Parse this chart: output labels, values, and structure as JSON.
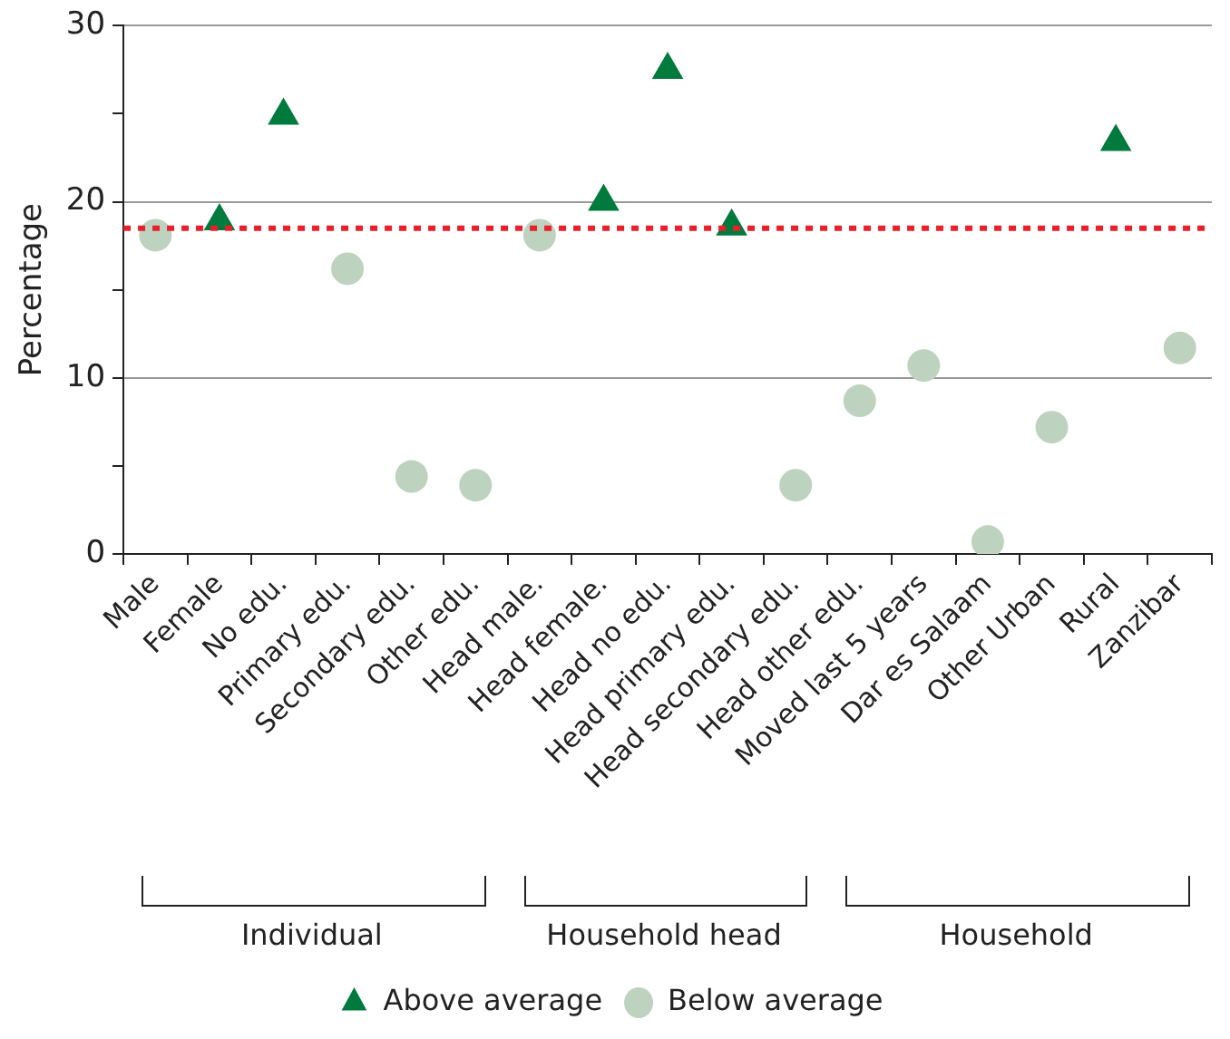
{
  "chart_data": {
    "type": "scatter",
    "ylabel": "Percentage",
    "categories": [
      "Male",
      "Female",
      "No edu.",
      "Primary edu.",
      "Secondary edu.",
      "Other edu.",
      "Head male.",
      "Head female.",
      "Head no edu.",
      "Head primary edu.",
      "Head secondary edu.",
      "Head other edu.",
      "Moved last 5 years",
      "Dar es Salaam",
      "Other Urban",
      "Rural",
      "Zanzibar"
    ],
    "series": [
      {
        "name": "Above average",
        "color": "#007a3d",
        "marker": "triangle",
        "values": [
          null,
          18.9,
          24.9,
          null,
          null,
          null,
          null,
          20.0,
          27.5,
          18.6,
          null,
          null,
          null,
          null,
          null,
          23.4,
          null
        ]
      },
      {
        "name": "Below average",
        "color": "#bdd3c0",
        "marker": "circle",
        "values": [
          18.1,
          null,
          null,
          16.2,
          4.4,
          3.9,
          18.1,
          null,
          null,
          null,
          3.9,
          8.7,
          10.7,
          0.7,
          7.2,
          null,
          11.7
        ]
      }
    ],
    "ylim": [
      0,
      30
    ],
    "yticks": [
      0,
      {
        "value": 5,
        "label": null
      },
      10,
      {
        "value": 15,
        "label": null
      },
      20,
      {
        "value": 25,
        "label": null
      },
      30
    ],
    "grid": "y",
    "legend": "bottom",
    "ref_lines": [
      {
        "axis": "y",
        "value": 18.5,
        "color": "#e8202a",
        "line_style": "dotted"
      }
    ],
    "annotations": [
      "Individual",
      "Household head",
      "Household"
    ]
  }
}
